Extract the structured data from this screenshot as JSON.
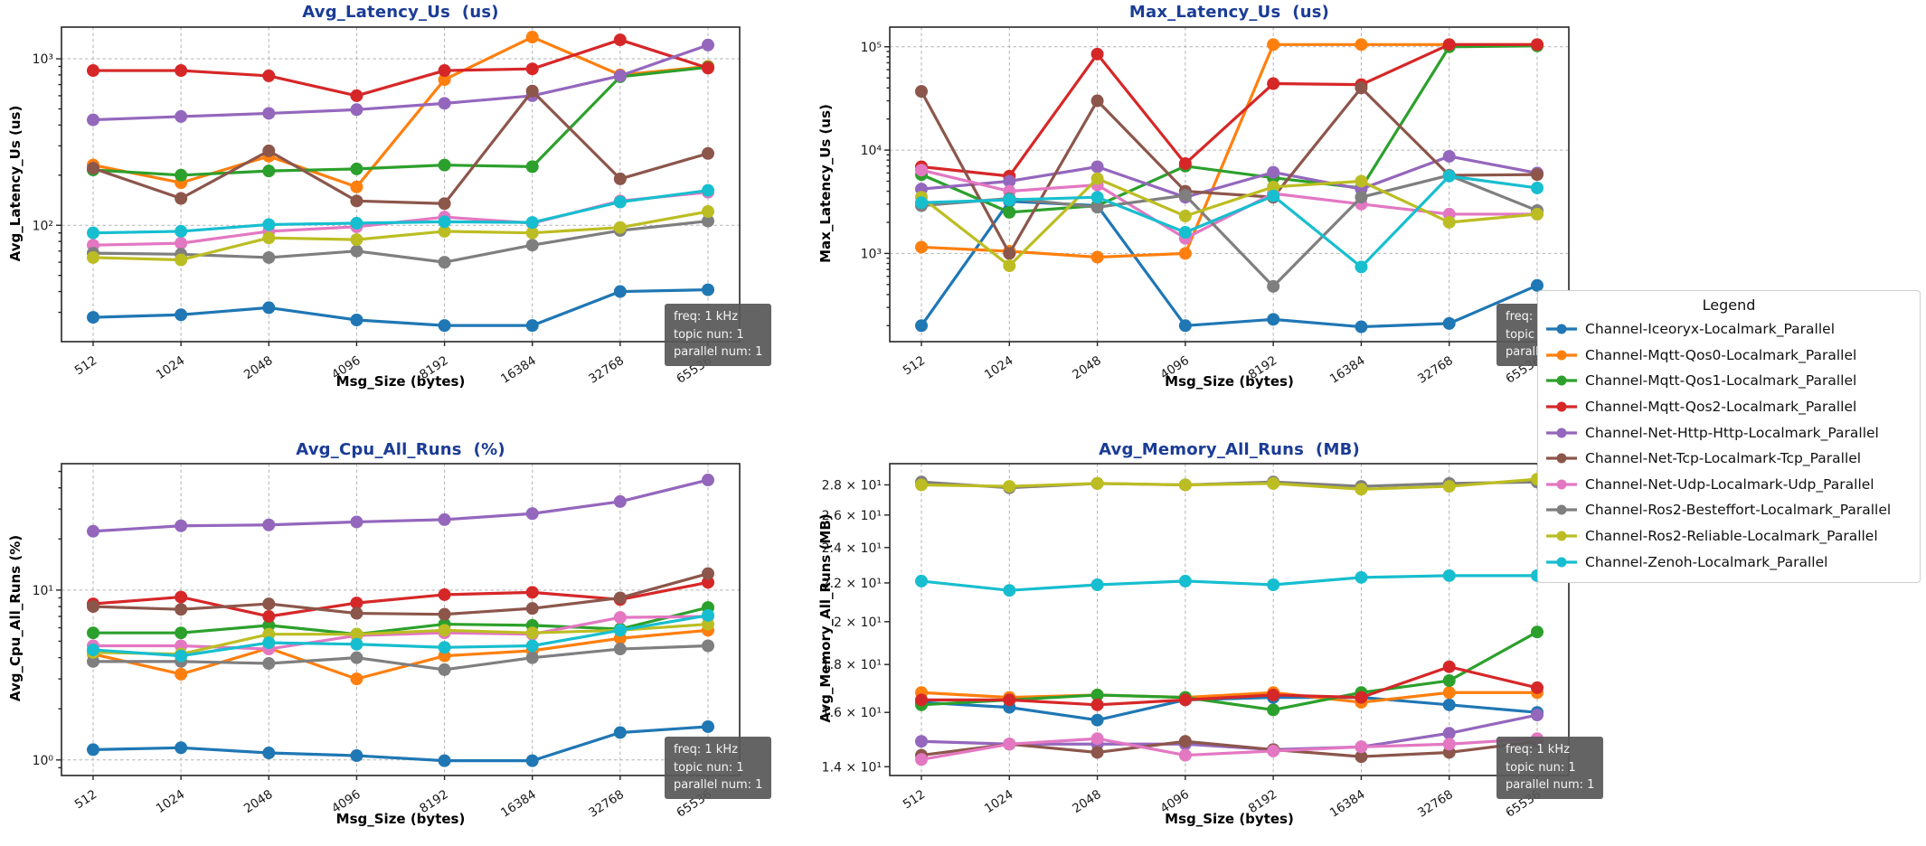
{
  "styles": {
    "title_color": "#1b3c96",
    "annotation_bg": "rgba(88,88,88,0.93)",
    "grid_color": "#b3b3b3"
  },
  "annotation": {
    "lines": [
      "freq: 1 kHz",
      "topic nun: 1",
      "parallel num: 1"
    ]
  },
  "legend": {
    "title": "Legend",
    "items": [
      {
        "label": "Channel-Iceoryx-Localmark_Parallel",
        "color": "#1f77b4"
      },
      {
        "label": "Channel-Mqtt-Qos0-Localmark_Parallel",
        "color": "#ff7f0e"
      },
      {
        "label": "Channel-Mqtt-Qos1-Localmark_Parallel",
        "color": "#2ca02c"
      },
      {
        "label": "Channel-Mqtt-Qos2-Localmark_Parallel",
        "color": "#d62728"
      },
      {
        "label": "Channel-Net-Http-Http-Localmark_Parallel",
        "color": "#9467bd"
      },
      {
        "label": "Channel-Net-Tcp-Localmark-Tcp_Parallel",
        "color": "#8c564b"
      },
      {
        "label": "Channel-Net-Udp-Localmark-Udp_Parallel",
        "color": "#e377c2"
      },
      {
        "label": "Channel-Ros2-Besteffort-Localmark_Parallel",
        "color": "#7f7f7f"
      },
      {
        "label": "Channel-Ros2-Reliable-Localmark_Parallel",
        "color": "#bcbd22"
      },
      {
        "label": "Channel-Zenoh-Localmark_Parallel",
        "color": "#17becf"
      }
    ]
  },
  "chart_data": [
    {
      "type": "line",
      "title": "Avg_Latency_Us  (us)",
      "ylabel": "Avg_Latency_Us (us)",
      "xlabel": "Msg_Size (bytes)",
      "x_categories": [
        "512",
        "1024",
        "2048",
        "4096",
        "8192",
        "16384",
        "32768",
        "65536"
      ],
      "yscale": "log",
      "ylim": [
        20,
        1550
      ],
      "minor_ticks": "log",
      "yticks": [
        {
          "value": 100,
          "label": "10²",
          "grid": true
        },
        {
          "value": 1000,
          "label": "10³",
          "grid": true
        }
      ],
      "series": [
        {
          "name": "Channel-Iceoryx-Localmark_Parallel",
          "values": [
            28,
            29,
            32,
            27,
            25,
            25,
            40,
            41
          ]
        },
        {
          "name": "Channel-Mqtt-Qos0-Localmark_Parallel",
          "values": [
            230,
            180,
            260,
            170,
            750,
            1350,
            800,
            900
          ]
        },
        {
          "name": "Channel-Mqtt-Qos1-Localmark_Parallel",
          "values": [
            215,
            200,
            212,
            218,
            230,
            225,
            780,
            890
          ]
        },
        {
          "name": "Channel-Mqtt-Qos2-Localmark_Parallel",
          "values": [
            850,
            850,
            790,
            600,
            850,
            870,
            1300,
            880
          ]
        },
        {
          "name": "Channel-Net-Http-Http-Localmark_Parallel",
          "values": [
            430,
            450,
            470,
            495,
            540,
            600,
            790,
            1210
          ]
        },
        {
          "name": "Channel-Net-Tcp-Localmark-Tcp_Parallel",
          "values": [
            220,
            145,
            280,
            140,
            135,
            640,
            190,
            270
          ]
        },
        {
          "name": "Channel-Net-Udp-Localmark-Udp_Parallel",
          "values": [
            76,
            78,
            92,
            98,
            112,
            103,
            140,
            158
          ]
        },
        {
          "name": "Channel-Ros2-Besteffort-Localmark_Parallel",
          "values": [
            68,
            67,
            64,
            70,
            60,
            76,
            93,
            106
          ]
        },
        {
          "name": "Channel-Ros2-Reliable-Localmark_Parallel",
          "values": [
            64,
            62,
            84,
            82,
            92,
            90,
            97,
            121
          ]
        },
        {
          "name": "Channel-Zenoh-Localmark_Parallel",
          "values": [
            90,
            92,
            101,
            103,
            105,
            104,
            138,
            162
          ]
        }
      ]
    },
    {
      "type": "line",
      "title": "Max_Latency_Us  (us)",
      "ylabel": "Max_Latency_Us (us)",
      "xlabel": "Msg_Size (bytes)",
      "x_categories": [
        "512",
        "1024",
        "2048",
        "4096",
        "8192",
        "16384",
        "32768",
        "65536"
      ],
      "yscale": "log",
      "ylim": [
        140,
        155000
      ],
      "minor_ticks": "log",
      "yticks": [
        {
          "value": 1000,
          "label": "10³",
          "grid": true
        },
        {
          "value": 10000,
          "label": "10⁴",
          "grid": true
        },
        {
          "value": 100000,
          "label": "10⁵",
          "grid": true
        }
      ],
      "series": [
        {
          "name": "Channel-Iceoryx-Localmark_Parallel",
          "values": [
            200,
            3200,
            2900,
            200,
            230,
            195,
            210,
            490
          ]
        },
        {
          "name": "Channel-Mqtt-Qos0-Localmark_Parallel",
          "values": [
            1150,
            1050,
            920,
            1000,
            105000,
            105000,
            105000,
            105000
          ]
        },
        {
          "name": "Channel-Mqtt-Qos1-Localmark_Parallel",
          "values": [
            5800,
            2500,
            2900,
            7000,
            5400,
            4300,
            100000,
            102000
          ]
        },
        {
          "name": "Channel-Mqtt-Qos2-Localmark_Parallel",
          "values": [
            6900,
            5600,
            85000,
            7400,
            44000,
            43000,
            105000,
            105000
          ]
        },
        {
          "name": "Channel-Net-Http-Http-Localmark_Parallel",
          "values": [
            4200,
            5000,
            6900,
            3500,
            6100,
            4200,
            8700,
            6000
          ]
        },
        {
          "name": "Channel-Net-Tcp-Localmark-Tcp_Parallel",
          "values": [
            37000,
            1000,
            30000,
            4000,
            3500,
            40000,
            5700,
            5800
          ]
        },
        {
          "name": "Channel-Net-Udp-Localmark-Udp_Parallel",
          "values": [
            6400,
            4000,
            4600,
            1400,
            3800,
            3000,
            2400,
            2400
          ]
        },
        {
          "name": "Channel-Ros2-Besteffort-Localmark_Parallel",
          "values": [
            2900,
            3400,
            2800,
            3650,
            480,
            3500,
            5700,
            2600
          ]
        },
        {
          "name": "Channel-Ros2-Reliable-Localmark_Parallel",
          "values": [
            3500,
            760,
            5300,
            2300,
            4400,
            5000,
            2000,
            2400
          ]
        },
        {
          "name": "Channel-Zenoh-Localmark_Parallel",
          "values": [
            3100,
            3300,
            3500,
            1600,
            3600,
            740,
            5600,
            4300
          ]
        }
      ]
    },
    {
      "type": "line",
      "title": "Avg_Cpu_All_Runs  (%)",
      "ylabel": "Avg_Cpu_All_Runs (%)",
      "xlabel": "Msg_Size (bytes)",
      "x_categories": [
        "512",
        "1024",
        "2048",
        "4096",
        "8192",
        "16384",
        "32768",
        "65536"
      ],
      "yscale": "log",
      "ylim": [
        0.81,
        55.5
      ],
      "minor_ticks": "log",
      "yticks": [
        {
          "value": 1,
          "label": "10⁰",
          "grid": true
        },
        {
          "value": 10,
          "label": "10¹",
          "grid": true
        }
      ],
      "series": [
        {
          "name": "Channel-Iceoryx-Localmark_Parallel",
          "values": [
            1.15,
            1.18,
            1.1,
            1.06,
            0.99,
            0.99,
            1.45,
            1.57
          ]
        },
        {
          "name": "Channel-Mqtt-Qos0-Localmark_Parallel",
          "values": [
            4.2,
            3.2,
            4.55,
            3.0,
            4.1,
            4.4,
            5.2,
            5.8
          ]
        },
        {
          "name": "Channel-Mqtt-Qos1-Localmark_Parallel",
          "values": [
            5.6,
            5.6,
            6.2,
            5.5,
            6.3,
            6.2,
            5.9,
            7.9
          ]
        },
        {
          "name": "Channel-Mqtt-Qos2-Localmark_Parallel",
          "values": [
            8.3,
            9.1,
            7.0,
            8.4,
            9.4,
            9.7,
            8.8,
            11.1
          ]
        },
        {
          "name": "Channel-Net-Http-Http-Localmark_Parallel",
          "values": [
            22.2,
            23.9,
            24.2,
            25.2,
            26.0,
            28.2,
            33.2,
            44.5
          ]
        },
        {
          "name": "Channel-Net-Tcp-Localmark-Tcp_Parallel",
          "values": [
            8.0,
            7.7,
            8.3,
            7.3,
            7.2,
            7.8,
            9.0,
            12.5
          ]
        },
        {
          "name": "Channel-Net-Udp-Localmark-Udp_Parallel",
          "values": [
            4.7,
            4.7,
            4.5,
            5.4,
            5.6,
            5.5,
            6.9,
            7.0
          ]
        },
        {
          "name": "Channel-Ros2-Besteffort-Localmark_Parallel",
          "values": [
            3.8,
            3.8,
            3.7,
            4.0,
            3.4,
            4.0,
            4.5,
            4.7
          ]
        },
        {
          "name": "Channel-Ros2-Reliable-Localmark_Parallel",
          "values": [
            4.3,
            4.2,
            5.5,
            5.5,
            5.8,
            5.6,
            5.8,
            6.3
          ]
        },
        {
          "name": "Channel-Zenoh-Localmark_Parallel",
          "values": [
            4.45,
            4.1,
            4.9,
            4.8,
            4.6,
            4.7,
            5.8,
            7.1
          ]
        }
      ]
    },
    {
      "type": "line",
      "title": "Avg_Memory_All_Runs  (MB)",
      "ylabel": "Avg_Memory_All_Runs (MB)",
      "xlabel": "Msg_Size (bytes)",
      "x_categories": [
        "512",
        "1024",
        "2048",
        "4096",
        "8192",
        "16384",
        "32768",
        "65536"
      ],
      "yscale": "log",
      "ylim": [
        13.7,
        29.5
      ],
      "minor_ticks": "none",
      "yticks": [
        {
          "value": 14,
          "label": "1.4 × 10¹",
          "grid": false
        },
        {
          "value": 16,
          "label": "1.6 × 10¹",
          "grid": false
        },
        {
          "value": 18,
          "label": "1.8 × 10¹",
          "grid": false
        },
        {
          "value": 20,
          "label": "2 × 10¹",
          "grid": false
        },
        {
          "value": 22,
          "label": "2.2 × 10¹",
          "grid": false
        },
        {
          "value": 24,
          "label": "2.4 × 10¹",
          "grid": false
        },
        {
          "value": 26,
          "label": "2.6 × 10¹",
          "grid": false
        },
        {
          "value": 28,
          "label": "2.8 × 10¹",
          "grid": false
        }
      ],
      "series": [
        {
          "name": "Channel-Iceoryx-Localmark_Parallel",
          "values": [
            16.4,
            16.2,
            15.7,
            16.5,
            16.6,
            16.6,
            16.3,
            16.0
          ]
        },
        {
          "name": "Channel-Mqtt-Qos0-Localmark_Parallel",
          "values": [
            16.8,
            16.6,
            16.7,
            16.6,
            16.8,
            16.4,
            16.8,
            16.8
          ]
        },
        {
          "name": "Channel-Mqtt-Qos1-Localmark_Parallel",
          "values": [
            16.3,
            16.5,
            16.7,
            16.6,
            16.1,
            16.8,
            17.3,
            19.5
          ]
        },
        {
          "name": "Channel-Mqtt-Qos2-Localmark_Parallel",
          "values": [
            16.5,
            16.5,
            16.3,
            16.5,
            16.7,
            16.6,
            17.9,
            17.0
          ]
        },
        {
          "name": "Channel-Net-Http-Http-Localmark_Parallel",
          "values": [
            14.9,
            14.8,
            14.8,
            14.8,
            14.6,
            14.7,
            15.2,
            15.9
          ]
        },
        {
          "name": "Channel-Net-Tcp-Localmark-Tcp_Parallel",
          "values": [
            14.4,
            14.8,
            14.5,
            14.9,
            14.6,
            14.35,
            14.5,
            14.9
          ]
        },
        {
          "name": "Channel-Net-Udp-Localmark-Udp_Parallel",
          "values": [
            14.25,
            14.8,
            15.0,
            14.4,
            14.55,
            14.7,
            14.8,
            15.0
          ]
        },
        {
          "name": "Channel-Ros2-Besteffort-Localmark_Parallel",
          "values": [
            28.2,
            27.8,
            28.1,
            28.0,
            28.2,
            27.9,
            28.1,
            28.2
          ]
        },
        {
          "name": "Channel-Ros2-Reliable-Localmark_Parallel",
          "values": [
            28.0,
            27.9,
            28.1,
            28.0,
            28.1,
            27.7,
            27.9,
            28.4
          ]
        },
        {
          "name": "Channel-Zenoh-Localmark_Parallel",
          "values": [
            22.1,
            21.6,
            21.9,
            22.1,
            21.9,
            22.3,
            22.4,
            22.4
          ]
        }
      ]
    }
  ]
}
